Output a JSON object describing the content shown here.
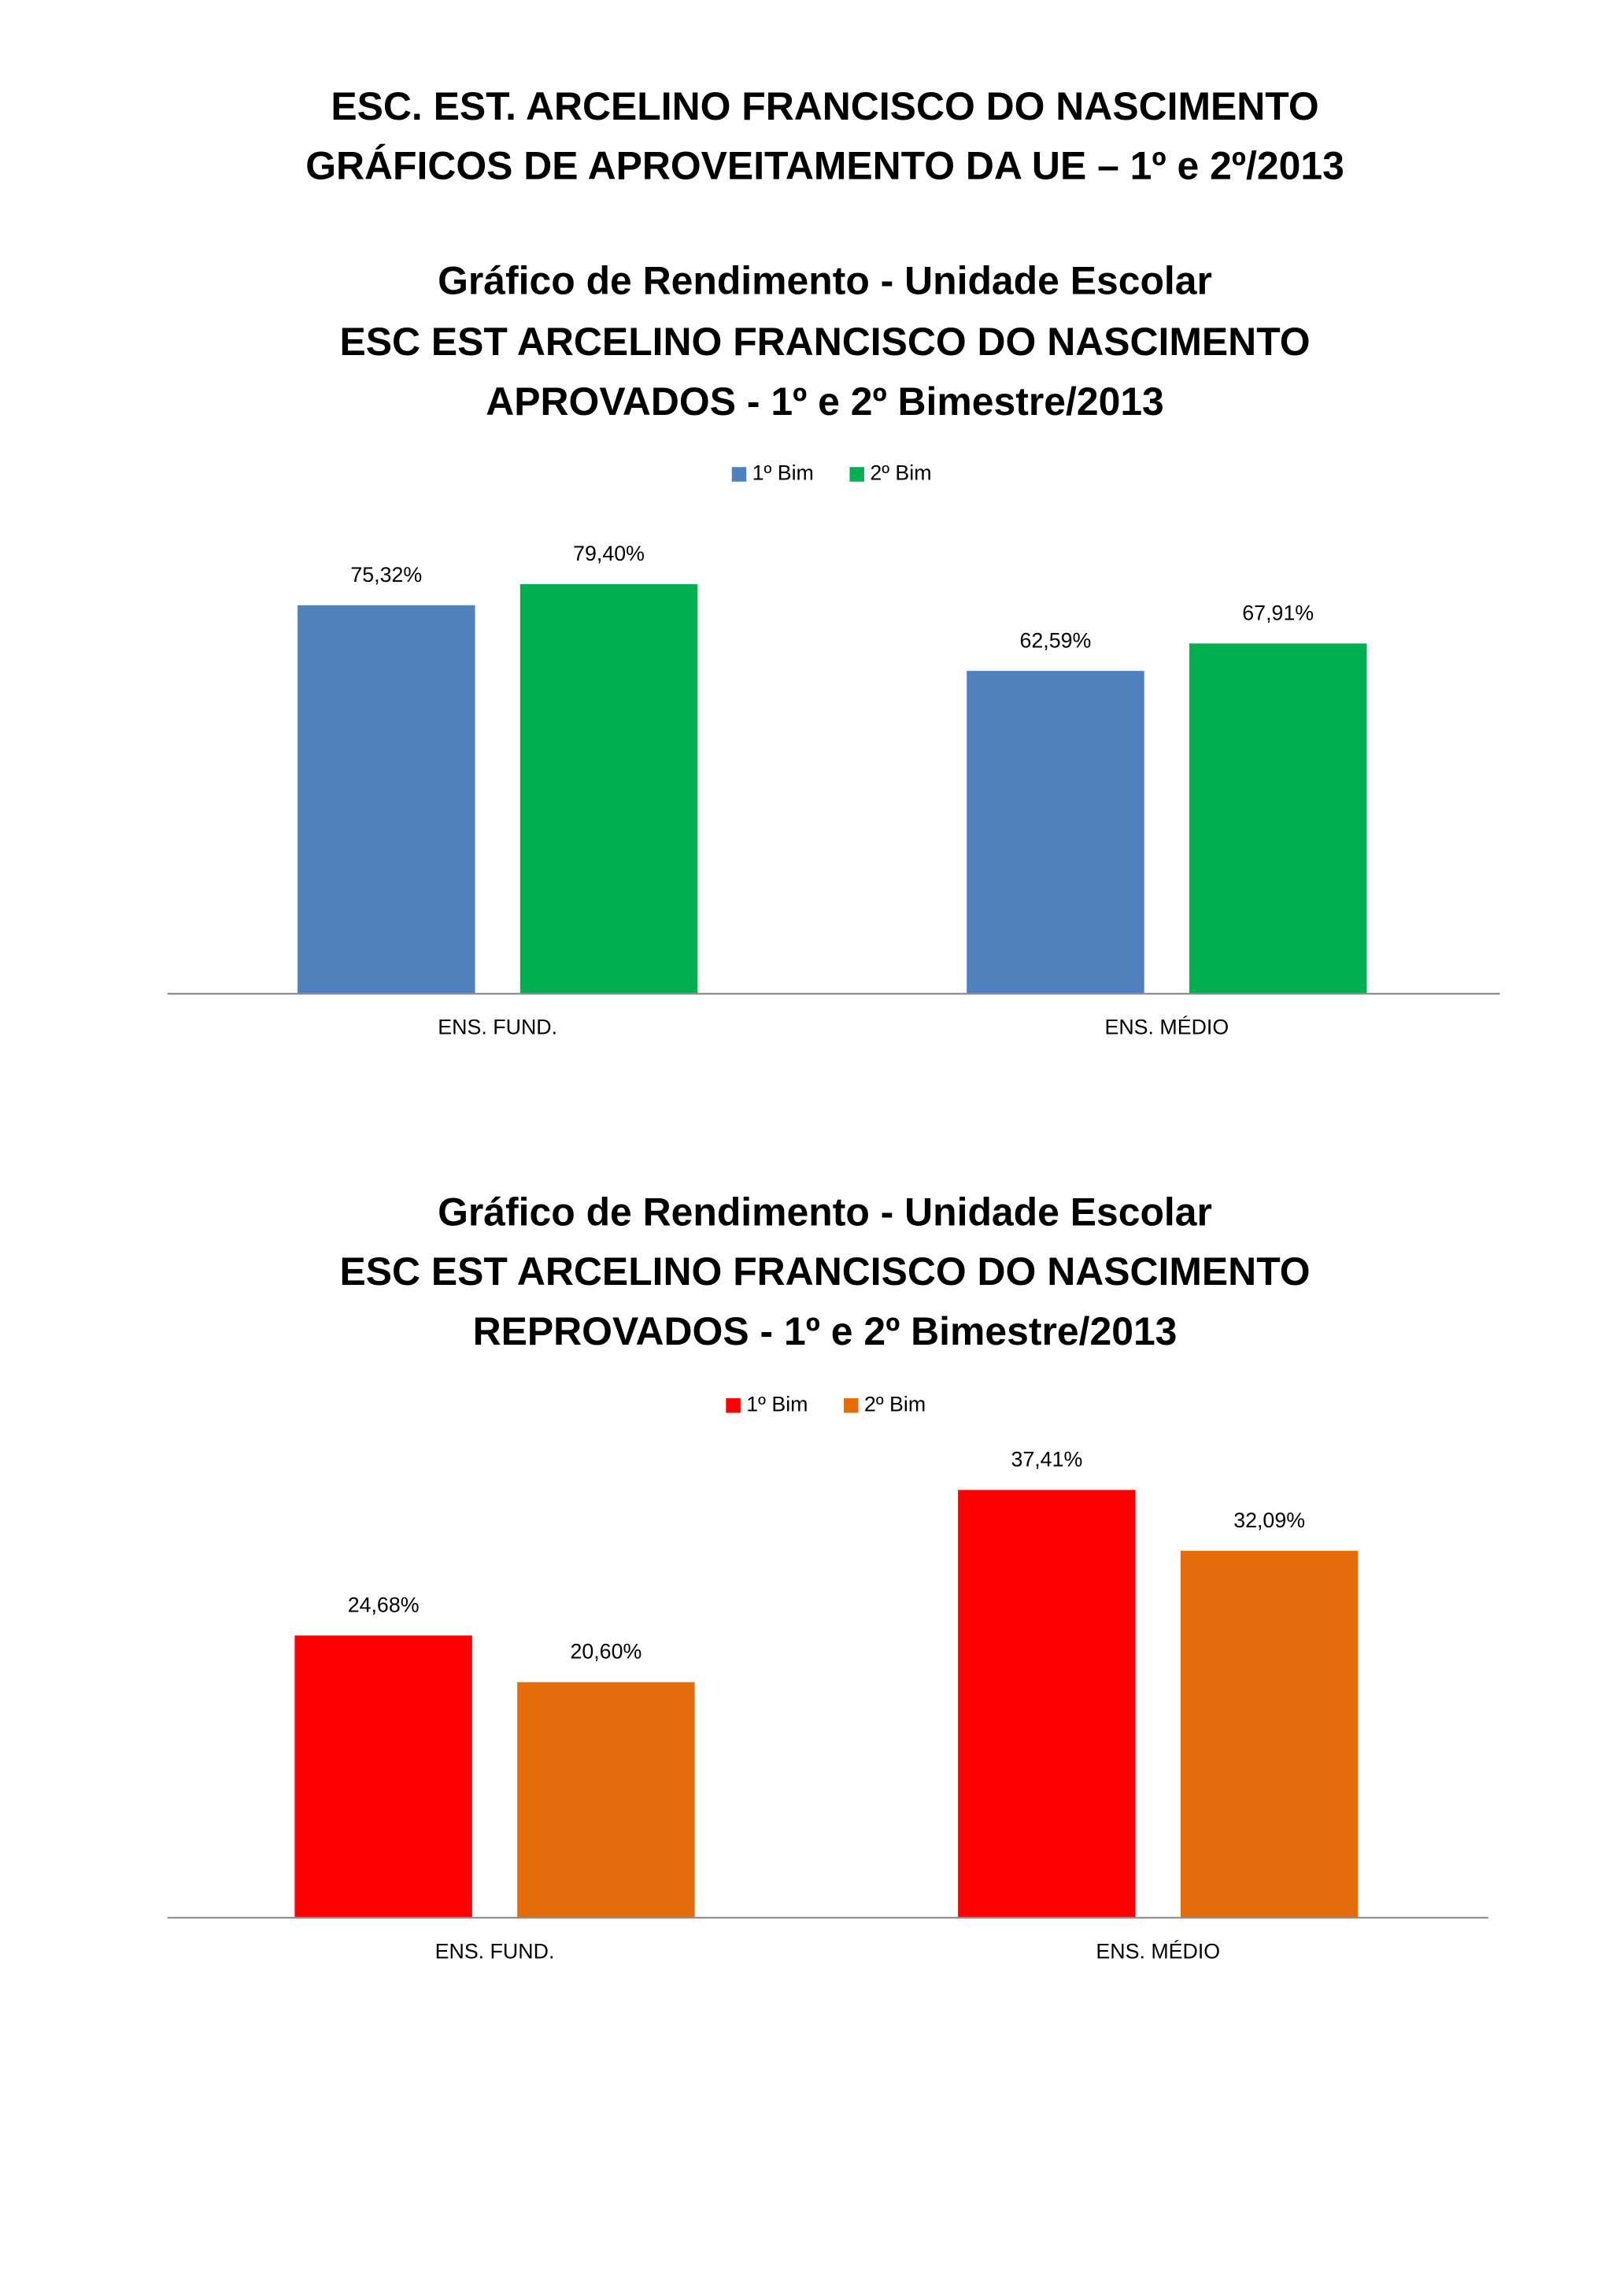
{
  "header": {
    "lines": [
      "ESC. EST. ARCELINO FRANCISCO DO NASCIMENTO",
      "GRÁFICOS DE APROVEITAMENTO DA UE  – 1º e 2º/2013"
    ]
  },
  "chart_data": [
    {
      "type": "bar",
      "title": [
        "Gráfico de Rendimento - Unidade Escolar",
        "ESC EST ARCELINO FRANCISCO DO NASCIMENTO",
        "APROVADOS - 1º e 2º Bimestre/2013"
      ],
      "categories": [
        "ENS. FUND.",
        "ENS. MÉDIO"
      ],
      "series": [
        {
          "name": "1º Bim",
          "color": "#4f81bd",
          "values": [
            75.32,
            62.59
          ],
          "value_labels": [
            "75,32%",
            "62,59%"
          ]
        },
        {
          "name": "2º Bim",
          "color": "#00b050",
          "values": [
            79.4,
            67.91
          ],
          "value_labels": [
            "79,40%",
            "67,91%"
          ]
        }
      ],
      "legend": "top"
    },
    {
      "type": "bar",
      "title": [
        "Gráfico de Rendimento - Unidade Escolar",
        "ESC EST ARCELINO FRANCISCO DO NASCIMENTO",
        "REPROVADOS - 1º e 2º Bimestre/2013"
      ],
      "categories": [
        "ENS. FUND.",
        "ENS. MÉDIO"
      ],
      "series": [
        {
          "name": "1º Bim",
          "color": "#ff0000",
          "values": [
            24.68,
            37.41
          ],
          "value_labels": [
            "24,68%",
            "37,41%"
          ]
        },
        {
          "name": "2º Bim",
          "color": "#e46c0a",
          "values": [
            20.6,
            32.09
          ],
          "value_labels": [
            "20,60%",
            "32,09%"
          ]
        }
      ],
      "legend": "top"
    }
  ]
}
